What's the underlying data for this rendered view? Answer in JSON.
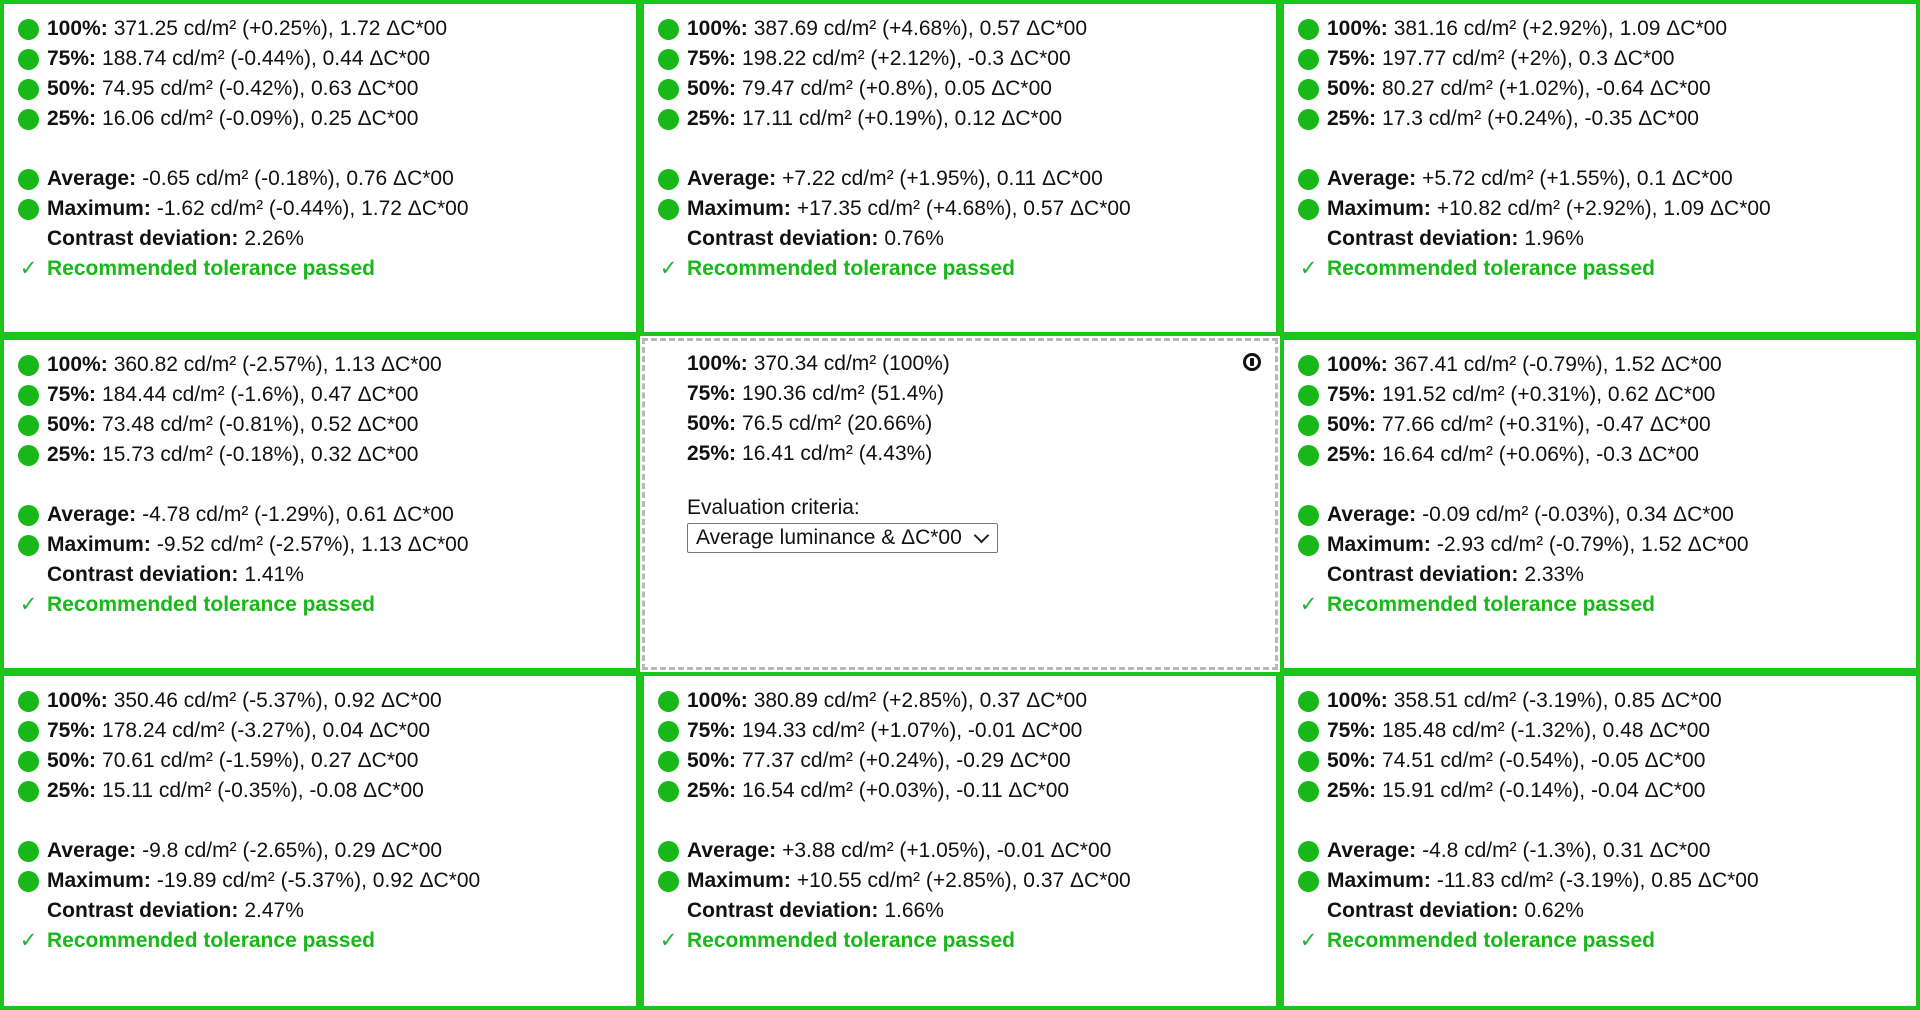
{
  "labels": {
    "p100": "100%:",
    "p75": "75%:",
    "p50": "50%:",
    "p25": "25%:",
    "average": "Average:",
    "maximum": "Maximum:",
    "contrast": "Contrast deviation:",
    "passed": "Recommended tolerance passed",
    "check": "✓"
  },
  "colors": {
    "pass_border": "#1cc41c",
    "dot": "#17b817",
    "pass_text": "#18b818",
    "reference_border": "#b8b8b8"
  },
  "reference": {
    "p100": "370.34 cd/m² (100%)",
    "p75": "190.36 cd/m² (51.4%)",
    "p50": "76.5 cd/m² (20.66%)",
    "p25": "16.41 cd/m² (4.43%)",
    "criteria_label": "Evaluation criteria:",
    "criteria_value": "Average luminance & ΔC*00",
    "icon": "info-icon"
  },
  "cells": [
    {
      "p100": "371.25 cd/m² (+0.25%), 1.72 ΔC*00",
      "p75": "188.74 cd/m² (-0.44%), 0.44 ΔC*00",
      "p50": "74.95 cd/m² (-0.42%), 0.63 ΔC*00",
      "p25": "16.06 cd/m² (-0.09%), 0.25 ΔC*00",
      "average": "-0.65 cd/m² (-0.18%), 0.76 ΔC*00",
      "maximum": "-1.62 cd/m² (-0.44%), 1.72 ΔC*00",
      "contrast": "2.26%"
    },
    {
      "p100": "387.69 cd/m² (+4.68%), 0.57 ΔC*00",
      "p75": "198.22 cd/m² (+2.12%), -0.3 ΔC*00",
      "p50": "79.47 cd/m² (+0.8%), 0.05 ΔC*00",
      "p25": "17.11 cd/m² (+0.19%), 0.12 ΔC*00",
      "average": "+7.22 cd/m² (+1.95%), 0.11 ΔC*00",
      "maximum": "+17.35 cd/m² (+4.68%), 0.57 ΔC*00",
      "contrast": "0.76%"
    },
    {
      "p100": "381.16 cd/m² (+2.92%), 1.09 ΔC*00",
      "p75": "197.77 cd/m² (+2%), 0.3 ΔC*00",
      "p50": "80.27 cd/m² (+1.02%), -0.64 ΔC*00",
      "p25": "17.3 cd/m² (+0.24%), -0.35 ΔC*00",
      "average": "+5.72 cd/m² (+1.55%), 0.1 ΔC*00",
      "maximum": "+10.82 cd/m² (+2.92%), 1.09 ΔC*00",
      "contrast": "1.96%"
    },
    {
      "p100": "360.82 cd/m² (-2.57%), 1.13 ΔC*00",
      "p75": "184.44 cd/m² (-1.6%), 0.47 ΔC*00",
      "p50": "73.48 cd/m² (-0.81%), 0.52 ΔC*00",
      "p25": "15.73 cd/m² (-0.18%), 0.32 ΔC*00",
      "average": "-4.78 cd/m² (-1.29%), 0.61 ΔC*00",
      "maximum": "-9.52 cd/m² (-2.57%), 1.13 ΔC*00",
      "contrast": "1.41%"
    },
    {
      "p100": "367.41 cd/m² (-0.79%), 1.52 ΔC*00",
      "p75": "191.52 cd/m² (+0.31%), 0.62 ΔC*00",
      "p50": "77.66 cd/m² (+0.31%), -0.47 ΔC*00",
      "p25": "16.64 cd/m² (+0.06%), -0.3 ΔC*00",
      "average": "-0.09 cd/m² (-0.03%), 0.34 ΔC*00",
      "maximum": "-2.93 cd/m² (-0.79%), 1.52 ΔC*00",
      "contrast": "2.33%"
    },
    {
      "p100": "350.46 cd/m² (-5.37%), 0.92 ΔC*00",
      "p75": "178.24 cd/m² (-3.27%), 0.04 ΔC*00",
      "p50": "70.61 cd/m² (-1.59%), 0.27 ΔC*00",
      "p25": "15.11 cd/m² (-0.35%), -0.08 ΔC*00",
      "average": "-9.8 cd/m² (-2.65%), 0.29 ΔC*00",
      "maximum": "-19.89 cd/m² (-5.37%), 0.92 ΔC*00",
      "contrast": "2.47%"
    },
    {
      "p100": "380.89 cd/m² (+2.85%), 0.37 ΔC*00",
      "p75": "194.33 cd/m² (+1.07%), -0.01 ΔC*00",
      "p50": "77.37 cd/m² (+0.24%), -0.29 ΔC*00",
      "p25": "16.54 cd/m² (+0.03%), -0.11 ΔC*00",
      "average": "+3.88 cd/m² (+1.05%), -0.01 ΔC*00",
      "maximum": "+10.55 cd/m² (+2.85%), 0.37 ΔC*00",
      "contrast": "1.66%"
    },
    {
      "p100": "358.51 cd/m² (-3.19%), 0.85 ΔC*00",
      "p75": "185.48 cd/m² (-1.32%), 0.48 ΔC*00",
      "p50": "74.51 cd/m² (-0.54%), -0.05 ΔC*00",
      "p25": "15.91 cd/m² (-0.14%), -0.04 ΔC*00",
      "average": "-4.8 cd/m² (-1.3%), 0.31 ΔC*00",
      "maximum": "-11.83 cd/m² (-3.19%), 0.85 ΔC*00",
      "contrast": "0.62%"
    }
  ]
}
